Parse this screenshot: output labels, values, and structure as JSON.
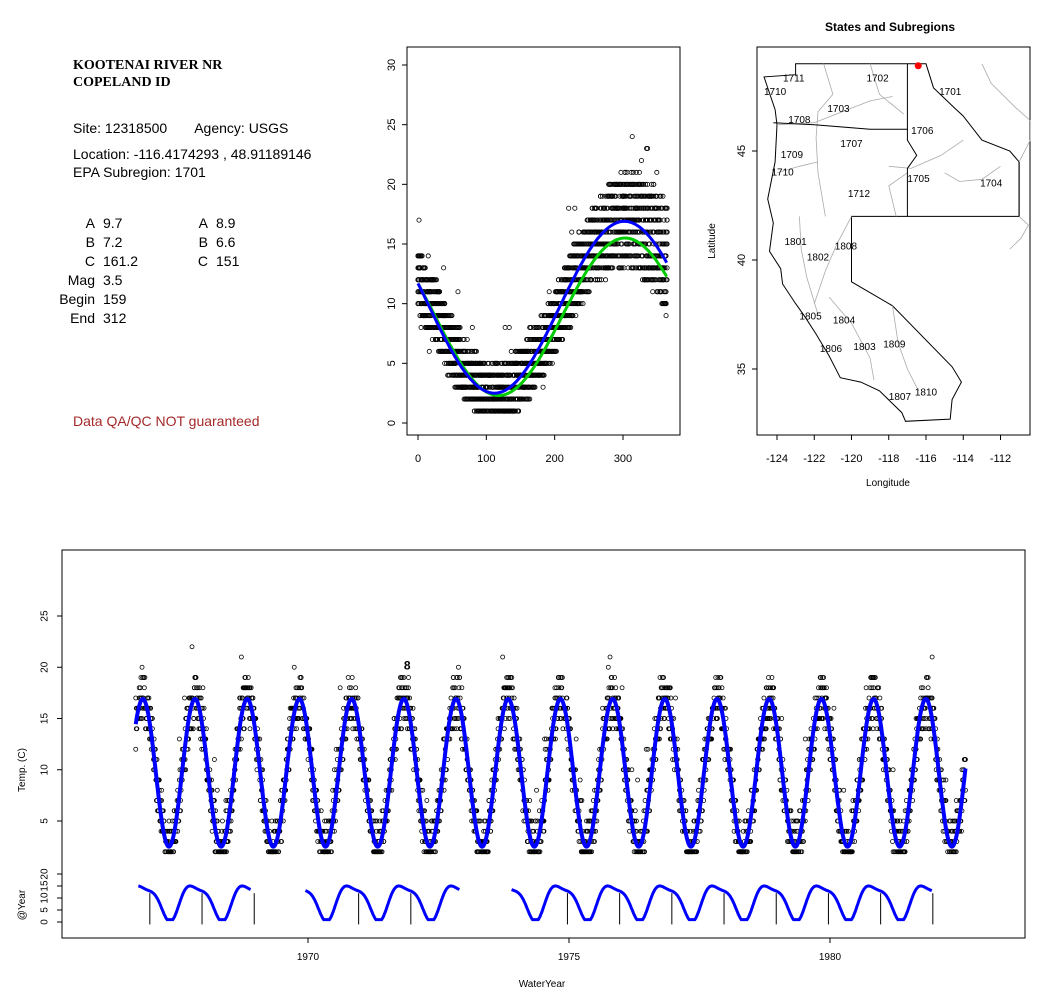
{
  "station": {
    "name_line1": "KOOTENAI RIVER NR",
    "name_line2": "COPELAND ID",
    "site_label": "Site: 12318500",
    "agency_label": "Agency: USGS",
    "location_label": "Location: -116.4174293 , 48.91189146",
    "subregion_label": "EPA Subregion: 1701"
  },
  "params": {
    "left": [
      {
        "key": "A",
        "value": "9.7"
      },
      {
        "key": "B",
        "value": "7.2"
      },
      {
        "key": "C",
        "value": "161.2"
      },
      {
        "key": "Mag",
        "value": "3.5"
      },
      {
        "key": "Begin",
        "value": "159"
      },
      {
        "key": "End",
        "value": "312"
      }
    ],
    "right": [
      {
        "key": "A",
        "value": "8.9"
      },
      {
        "key": "B",
        "value": "6.6"
      },
      {
        "key": "C",
        "value": "151"
      }
    ]
  },
  "qa_note": "Data QA/QC NOT guaranteed",
  "colors": {
    "fit_blue": "#0000ff",
    "fit_green": "#00cc00",
    "qa_text": "#a52a2a",
    "site_marker": "#ff0000",
    "map_gray": "#aaaaaa"
  },
  "chart_data": [
    {
      "type": "scatter",
      "title": "",
      "xlabel": "",
      "ylabel": "",
      "xlim": [
        0,
        365
      ],
      "ylim": [
        0,
        30
      ],
      "x_ticks": [
        0,
        100,
        200,
        300
      ],
      "y_ticks": [
        0,
        5,
        10,
        15,
        20,
        25,
        30
      ],
      "points_description": "daily stream temperature (C) vs day of water year, many years overlaid",
      "curves": [
        {
          "color": "blue",
          "model": "sine",
          "mean": 9.7,
          "amplitude": 7.2,
          "phase_day": 161.2
        },
        {
          "color": "green",
          "model": "sine",
          "mean": 8.9,
          "amplitude": 6.6,
          "phase_day": 151
        }
      ]
    },
    {
      "type": "map",
      "title": "States and Subregions",
      "xlabel": "Longitude",
      "ylabel": "Latitude",
      "xlim": [
        -125.5,
        -110.5
      ],
      "ylim": [
        32,
        49.5
      ],
      "x_ticks": [
        -124,
        -122,
        -120,
        -118,
        -116,
        -114,
        -112
      ],
      "y_ticks": [
        35,
        40,
        45
      ],
      "site": {
        "lon": -116.4174293,
        "lat": 48.91189146
      },
      "subregion_labels": [
        {
          "id": "1711",
          "lon": -123.1,
          "lat": 48.3
        },
        {
          "id": "1710",
          "lon": -124.1,
          "lat": 47.7
        },
        {
          "id": "1702",
          "lon": -118.6,
          "lat": 48.3
        },
        {
          "id": "1701",
          "lon": -114.7,
          "lat": 47.7
        },
        {
          "id": "1703",
          "lon": -120.7,
          "lat": 46.9
        },
        {
          "id": "1708",
          "lon": -122.8,
          "lat": 46.4
        },
        {
          "id": "1706",
          "lon": -116.2,
          "lat": 45.9
        },
        {
          "id": "1707",
          "lon": -120.0,
          "lat": 45.3
        },
        {
          "id": "1709",
          "lon": -123.2,
          "lat": 44.8
        },
        {
          "id": "1710",
          "lon": -123.7,
          "lat": 44.0
        },
        {
          "id": "1705",
          "lon": -116.4,
          "lat": 43.7
        },
        {
          "id": "1704",
          "lon": -112.5,
          "lat": 43.5
        },
        {
          "id": "1712",
          "lon": -119.6,
          "lat": 43.0
        },
        {
          "id": "1801",
          "lon": -123.0,
          "lat": 40.8
        },
        {
          "id": "1808",
          "lon": -120.3,
          "lat": 40.6
        },
        {
          "id": "1802",
          "lon": -121.8,
          "lat": 40.1
        },
        {
          "id": "1805",
          "lon": -122.2,
          "lat": 37.4
        },
        {
          "id": "1804",
          "lon": -120.4,
          "lat": 37.2
        },
        {
          "id": "1806",
          "lon": -121.1,
          "lat": 35.9
        },
        {
          "id": "1803",
          "lon": -119.3,
          "lat": 36.0
        },
        {
          "id": "1809",
          "lon": -117.7,
          "lat": 36.1
        },
        {
          "id": "1810",
          "lon": -116.0,
          "lat": 33.9
        },
        {
          "id": "1807",
          "lon": -117.4,
          "lat": 33.7
        }
      ]
    },
    {
      "type": "line",
      "title": "",
      "xlabel": "WaterYear",
      "ylabel": "Temp. (C)",
      "xlim": [
        1966.2,
        1982.9
      ],
      "ylim": [
        -7,
        30
      ],
      "x_ticks": [
        1970,
        1975,
        1980
      ],
      "y_ticks": [
        5,
        10,
        15,
        20,
        25
      ],
      "annotation": "8",
      "annotation_x": 1971.9,
      "annotation_y": 19.8,
      "blue_fit": {
        "start": 1966.7,
        "end": 1982.6,
        "mean": 9.7,
        "amplitude": 7.2
      },
      "years_with_obs": [
        1967,
        1968,
        1969,
        1970,
        1971,
        1972,
        1973,
        1974,
        1975,
        1976,
        1977,
        1978,
        1979,
        1980,
        1981,
        1982
      ],
      "sub_panel": {
        "ylabel": "@Year",
        "y_ticks": [
          0,
          5,
          10,
          15,
          20
        ],
        "gaps_after": [
          1968.9,
          1972.9
        ]
      }
    }
  ]
}
